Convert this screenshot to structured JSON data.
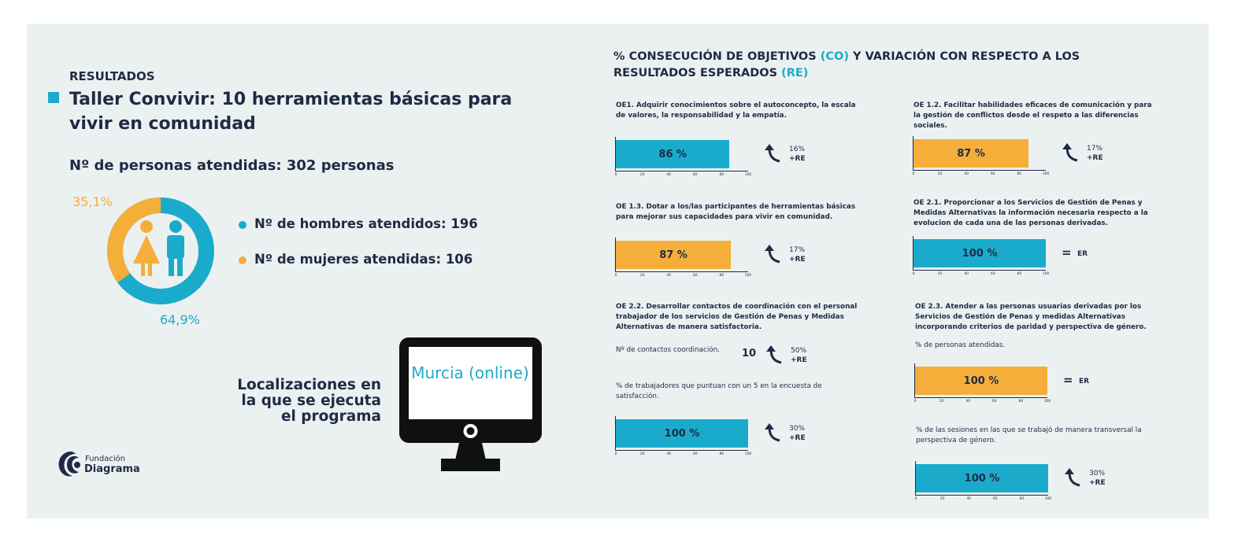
{
  "left": {
    "kicker": "RESULTADOS",
    "title": "Taller Convivir: 10 herramientas básicas para vivir en comunidad",
    "persons_text": "Nº de personas atendidas: 302 personas",
    "donut": {
      "women_pct_label": "35,1%",
      "men_pct_label": "64,9%",
      "women_fraction": 0.351,
      "men_fraction": 0.649
    },
    "legend": [
      {
        "label": "Nº de hombres atendidos: 196",
        "color": "#1aabcc"
      },
      {
        "label": "Nº de mujeres atendidas: 106",
        "color": "#f5ae3a"
      }
    ],
    "locations_label": "Localizaciones en la que se ejecuta el programa",
    "location_value": "Murcia (online)",
    "logo": {
      "line1": "Fundación",
      "line2": "Diagrama"
    }
  },
  "right": {
    "title_part1": "% CONSECUCIÓN DE OBJETIVOS ",
    "title_co": "(CO)",
    "title_part2": " Y VARIACIÓN CON RESPECTO A LOS RESULTADOS ESPERADOS ",
    "title_re": "(RE)"
  },
  "colors": {
    "blue": "#1aabcc",
    "orange": "#f5ae3a",
    "navy": "#1f2a44",
    "panel": "#ebf1f1"
  },
  "axis_ticks": [
    "0",
    "20",
    "40",
    "60",
    "80",
    "100"
  ],
  "chart_data": [
    {
      "type": "bar",
      "objective": "OE1. Adquirir conocimientos sobre el autoconcepto, la escala de valores, la responsabilidad y la empatía.",
      "metric": "",
      "value": 86,
      "value_label": "86 %",
      "color": "#1aabcc",
      "xlim": [
        0,
        100
      ],
      "variation": {
        "pct": "16%",
        "ref": "+RE",
        "icon": "curved-up-arrow-icon"
      }
    },
    {
      "type": "bar",
      "objective": "OE 1.2. Facilitar habilidades eficaces de comunicación y para la gestión de conflictos desde el respeto a las diferencias sociales.",
      "metric": "",
      "value": 87,
      "value_label": "87 %",
      "color": "#f5ae3a",
      "xlim": [
        0,
        100
      ],
      "variation": {
        "pct": "17%",
        "ref": "+RE",
        "icon": "curved-up-arrow-icon"
      }
    },
    {
      "type": "bar",
      "objective": "OE 1.3. Dotar a los/las participantes de herramientas básicas para mejorar sus capacidades para vivir en comunidad.",
      "metric": "",
      "value": 87,
      "value_label": "87 %",
      "color": "#f5ae3a",
      "xlim": [
        0,
        100
      ],
      "variation": {
        "pct": "17%",
        "ref": "+RE",
        "icon": "curved-up-arrow-icon"
      }
    },
    {
      "type": "bar",
      "objective": "OE 2.1. Proporcionar a los Servicios de Gestión de Penas y Medidas Alternativas la información necesaria respecto a la evolucion de cada una de las personas derivadas.",
      "metric": "",
      "value": 100,
      "value_label": "100 %",
      "color": "#1aabcc",
      "xlim": [
        0,
        100
      ],
      "variation": {
        "pct": "",
        "ref": "ER",
        "icon": "equals-icon"
      }
    },
    {
      "type": "bar",
      "objective": "OE 2.2. Desarrollar contactos de coordinación con el personal trabajador de los servicios de Gestión de Penas y Medidas Alternativas de manera satisfactoria.",
      "metric": "Nº de contactos coordinación.",
      "value": 10,
      "value_label": "10",
      "color": "",
      "xlim": [],
      "variation": {
        "pct": "50%",
        "ref": "+RE",
        "icon": "curved-up-arrow-icon"
      }
    },
    {
      "type": "bar",
      "objective": "",
      "metric": "% de trabajadores que puntuan con un 5 en la encuesta de satisfacción.",
      "value": 100,
      "value_label": "100 %",
      "color": "#1aabcc",
      "xlim": [
        0,
        100
      ],
      "variation": {
        "pct": "30%",
        "ref": "+RE",
        "icon": "curved-up-arrow-icon"
      }
    },
    {
      "type": "bar",
      "objective": "OE 2.3. Atender a las personas usuarias derivadas por los Servicios de Gestión de Penas y medidas Alternativas incorporando criterios de paridad y perspectiva de género.",
      "metric": "% de personas atendidas.",
      "value": 100,
      "value_label": "100 %",
      "color": "#f5ae3a",
      "xlim": [
        0,
        100
      ],
      "variation": {
        "pct": "",
        "ref": "ER",
        "icon": "equals-icon"
      }
    },
    {
      "type": "bar",
      "objective": "",
      "metric": "% de las sesiones en las que se trabajó de manera transversal la perspectiva de género.",
      "value": 100,
      "value_label": "100 %",
      "color": "#1aabcc",
      "xlim": [
        0,
        100
      ],
      "variation": {
        "pct": "30%",
        "ref": "+RE",
        "icon": "curved-up-arrow-icon"
      }
    }
  ]
}
